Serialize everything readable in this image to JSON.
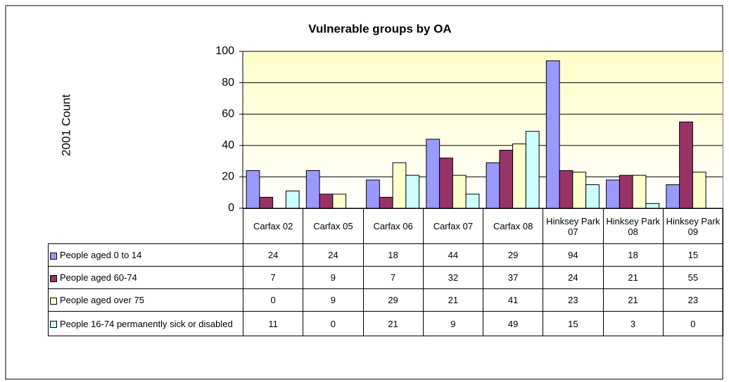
{
  "chart_data": {
    "type": "bar",
    "title": "Vulnerable groups by OA",
    "y_label": "2001 Count",
    "categories": [
      "Carfax 02",
      "Carfax 05",
      "Carfax 06",
      "Carfax 07",
      "Carfax 08",
      "Hinksey Park 07",
      "Hinksey Park 08",
      "Hinksey Park 09"
    ],
    "series": [
      {
        "name": "People aged 0 to 14",
        "color": "#9999ff",
        "values": [
          24,
          24,
          18,
          44,
          29,
          94,
          18,
          15
        ]
      },
      {
        "name": "People aged 60-74",
        "color": "#993366",
        "values": [
          7,
          9,
          7,
          32,
          37,
          24,
          21,
          55
        ]
      },
      {
        "name": "People aged over 75",
        "color": "#ffffcc",
        "values": [
          0,
          9,
          29,
          21,
          41,
          23,
          21,
          23
        ]
      },
      {
        "name": "People 16-74 permanently sick or disabled",
        "color": "#ccffff",
        "values": [
          11,
          0,
          21,
          9,
          49,
          15,
          3,
          0
        ]
      }
    ],
    "ylim": [
      0,
      100
    ],
    "yticks": [
      0,
      20,
      40,
      60,
      80,
      100
    ],
    "grid": true
  }
}
